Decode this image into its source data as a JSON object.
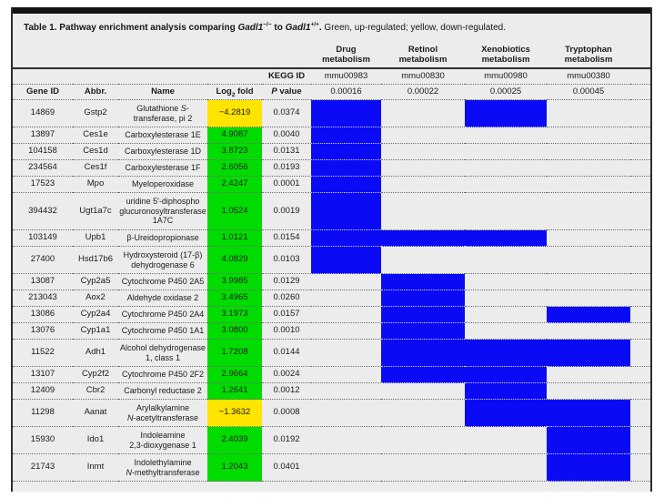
{
  "colors": {
    "up_green": "#00dc00",
    "down_yellow": "#ffe400",
    "pathway_blue": "#0a0af5",
    "card_bg": "#ececec",
    "top_bar": "#141414"
  },
  "title_segments": [
    {
      "t": "Table 1. Pathway enrichment analysis comparing ",
      "b": true
    },
    {
      "t": "Gadl1",
      "b": true,
      "i": true
    },
    {
      "t": "−/−",
      "b": true,
      "sup": true
    },
    {
      "t": " to ",
      "b": true
    },
    {
      "t": "Gadl1",
      "b": true,
      "i": true
    },
    {
      "t": "+/+",
      "b": true,
      "sup": true
    },
    {
      "t": ".",
      "b": true
    },
    {
      "t": " Green, up-regulated; yellow, down-regulated."
    }
  ],
  "kegg_label": "KEGG ID",
  "header": {
    "gene_id": "Gene ID",
    "abbr": "Abbr.",
    "name": "Name",
    "log2_segments": [
      "Log",
      {
        "t": "2",
        "sub": true
      },
      " fold"
    ],
    "pvalue_segments": [
      {
        "t": "P",
        "i": true
      },
      " value"
    ]
  },
  "pathway_columns": [
    {
      "lines": [
        "Drug",
        "metabolism"
      ],
      "kegg": "mmu00983",
      "pvalue": "0.00016"
    },
    {
      "lines": [
        "Retinol",
        "metabolism"
      ],
      "kegg": "mmu00830",
      "pvalue": "0.00022"
    },
    {
      "lines": [
        "Xenobiotics",
        "metabolism"
      ],
      "kegg": "mmu00980",
      "pvalue": "0.00025"
    },
    {
      "lines": [
        "Tryptophan",
        "metabolism"
      ],
      "kegg": "mmu00380",
      "pvalue": "0.00045"
    }
  ],
  "rows": [
    {
      "gene_id": "14869",
      "abbr": "Gstp2",
      "name_lines": [
        [
          "Glutathione ",
          {
            "t": "S",
            "i": true
          },
          "-"
        ],
        [
          "transferase, pi 2"
        ]
      ],
      "log2": "−4.2819",
      "direction": "down",
      "pvalue": "0.0374",
      "pathways": [
        1,
        0,
        1,
        0
      ]
    },
    {
      "gene_id": "13897",
      "abbr": "Ces1e",
      "name_lines": [
        [
          "Carboxylesterase 1E"
        ]
      ],
      "log2": "4.9087",
      "direction": "up",
      "pvalue": "0.0040",
      "pathways": [
        1,
        0,
        0,
        0
      ]
    },
    {
      "gene_id": "104158",
      "abbr": "Ces1d",
      "name_lines": [
        [
          "Carboxylesterase 1D"
        ]
      ],
      "log2": "3.8723",
      "direction": "up",
      "pvalue": "0.0131",
      "pathways": [
        1,
        0,
        0,
        0
      ]
    },
    {
      "gene_id": "234564",
      "abbr": "Ces1f",
      "name_lines": [
        [
          "Carboxylesterase 1F"
        ]
      ],
      "log2": "2.6056",
      "direction": "up",
      "pvalue": "0.0193",
      "pathways": [
        1,
        0,
        0,
        0
      ]
    },
    {
      "gene_id": "17523",
      "abbr": "Mpo",
      "name_lines": [
        [
          "Myeloperoxidase"
        ]
      ],
      "log2": "2.4247",
      "direction": "up",
      "pvalue": "0.0001",
      "pathways": [
        1,
        0,
        0,
        0
      ]
    },
    {
      "gene_id": "394432",
      "abbr": "Ugt1a7c",
      "name_lines": [
        [
          "uridine 5′-diphospho"
        ],
        [
          "glucuronosyltransferase"
        ],
        [
          "1A7C"
        ]
      ],
      "log2": "1.0524",
      "direction": "up",
      "pvalue": "0.0019",
      "pathways": [
        1,
        0,
        0,
        0
      ]
    },
    {
      "gene_id": "103149",
      "abbr": "Upb1",
      "name_lines": [
        [
          "β-Ureidopropionase"
        ]
      ],
      "log2": "1.0121",
      "direction": "up",
      "pvalue": "0.0154",
      "pathways": [
        1,
        1,
        1,
        0
      ]
    },
    {
      "gene_id": "27400",
      "abbr": "Hsd17b6",
      "name_lines": [
        [
          "Hydroxysteroid (17-β)"
        ],
        [
          "dehydrogenase 6"
        ]
      ],
      "log2": "4.0829",
      "direction": "up",
      "pvalue": "0.0103",
      "pathways": [
        1,
        0,
        0,
        0
      ]
    },
    {
      "gene_id": "13087",
      "abbr": "Cyp2a5",
      "name_lines": [
        [
          "Cytochrome P450 2A5"
        ]
      ],
      "log2": "3.9985",
      "direction": "up",
      "pvalue": "0.0129",
      "pathways": [
        0,
        1,
        0,
        0
      ]
    },
    {
      "gene_id": "213043",
      "abbr": "Aox2",
      "name_lines": [
        [
          "Aldehyde oxidase 2"
        ]
      ],
      "log2": "3.4965",
      "direction": "up",
      "pvalue": "0.0260",
      "pathways": [
        0,
        1,
        0,
        0
      ]
    },
    {
      "gene_id": "13086",
      "abbr": "Cyp2a4",
      "name_lines": [
        [
          "Cytochrome P450 2A4"
        ]
      ],
      "log2": "3.1973",
      "direction": "up",
      "pvalue": "0.0157",
      "pathways": [
        0,
        1,
        0,
        1
      ]
    },
    {
      "gene_id": "13076",
      "abbr": "Cyp1a1",
      "name_lines": [
        [
          "Cytochrome P450 1A1"
        ]
      ],
      "log2": "3.0800",
      "direction": "up",
      "pvalue": "0.0010",
      "pathways": [
        0,
        1,
        0,
        0
      ]
    },
    {
      "gene_id": "11522",
      "abbr": "Adh1",
      "name_lines": [
        [
          "Alcohol dehydrogenase"
        ],
        [
          "1, class 1"
        ]
      ],
      "log2": "1.7208",
      "direction": "up",
      "pvalue": "0.0144",
      "pathways": [
        0,
        1,
        1,
        1
      ]
    },
    {
      "gene_id": "13107",
      "abbr": "Cyp2f2",
      "name_lines": [
        [
          "Cytochrome P450 2F2"
        ]
      ],
      "log2": "2.9664",
      "direction": "up",
      "pvalue": "0.0024",
      "pathways": [
        0,
        1,
        1,
        0
      ]
    },
    {
      "gene_id": "12409",
      "abbr": "Cbr2",
      "name_lines": [
        [
          "Carbonyl reductase 2"
        ]
      ],
      "log2": "1.2641",
      "direction": "up",
      "pvalue": "0.0012",
      "pathways": [
        0,
        0,
        1,
        0
      ]
    },
    {
      "gene_id": "11298",
      "abbr": "Aanat",
      "name_lines": [
        [
          "Arylalkylamine"
        ],
        [
          {
            "t": "N",
            "i": true
          },
          "-acetyltransferase"
        ]
      ],
      "log2": "−1.3632",
      "direction": "down",
      "pvalue": "0.0008",
      "pathways": [
        0,
        0,
        1,
        1
      ]
    },
    {
      "gene_id": "15930",
      "abbr": "Ido1",
      "name_lines": [
        [
          "Indoleamine"
        ],
        [
          "2,3-dioxygenase 1"
        ]
      ],
      "log2": "2.4039",
      "direction": "up",
      "pvalue": "0.0192",
      "pathways": [
        0,
        0,
        0,
        1
      ]
    },
    {
      "gene_id": "21743",
      "abbr": "Inmt",
      "name_lines": [
        [
          "Indolethylamine"
        ],
        [
          {
            "t": "N",
            "i": true
          },
          "-methyltransferase"
        ]
      ],
      "log2": "1.2043",
      "direction": "up",
      "pvalue": "0.0401",
      "pathways": [
        0,
        0,
        0,
        1
      ]
    }
  ]
}
